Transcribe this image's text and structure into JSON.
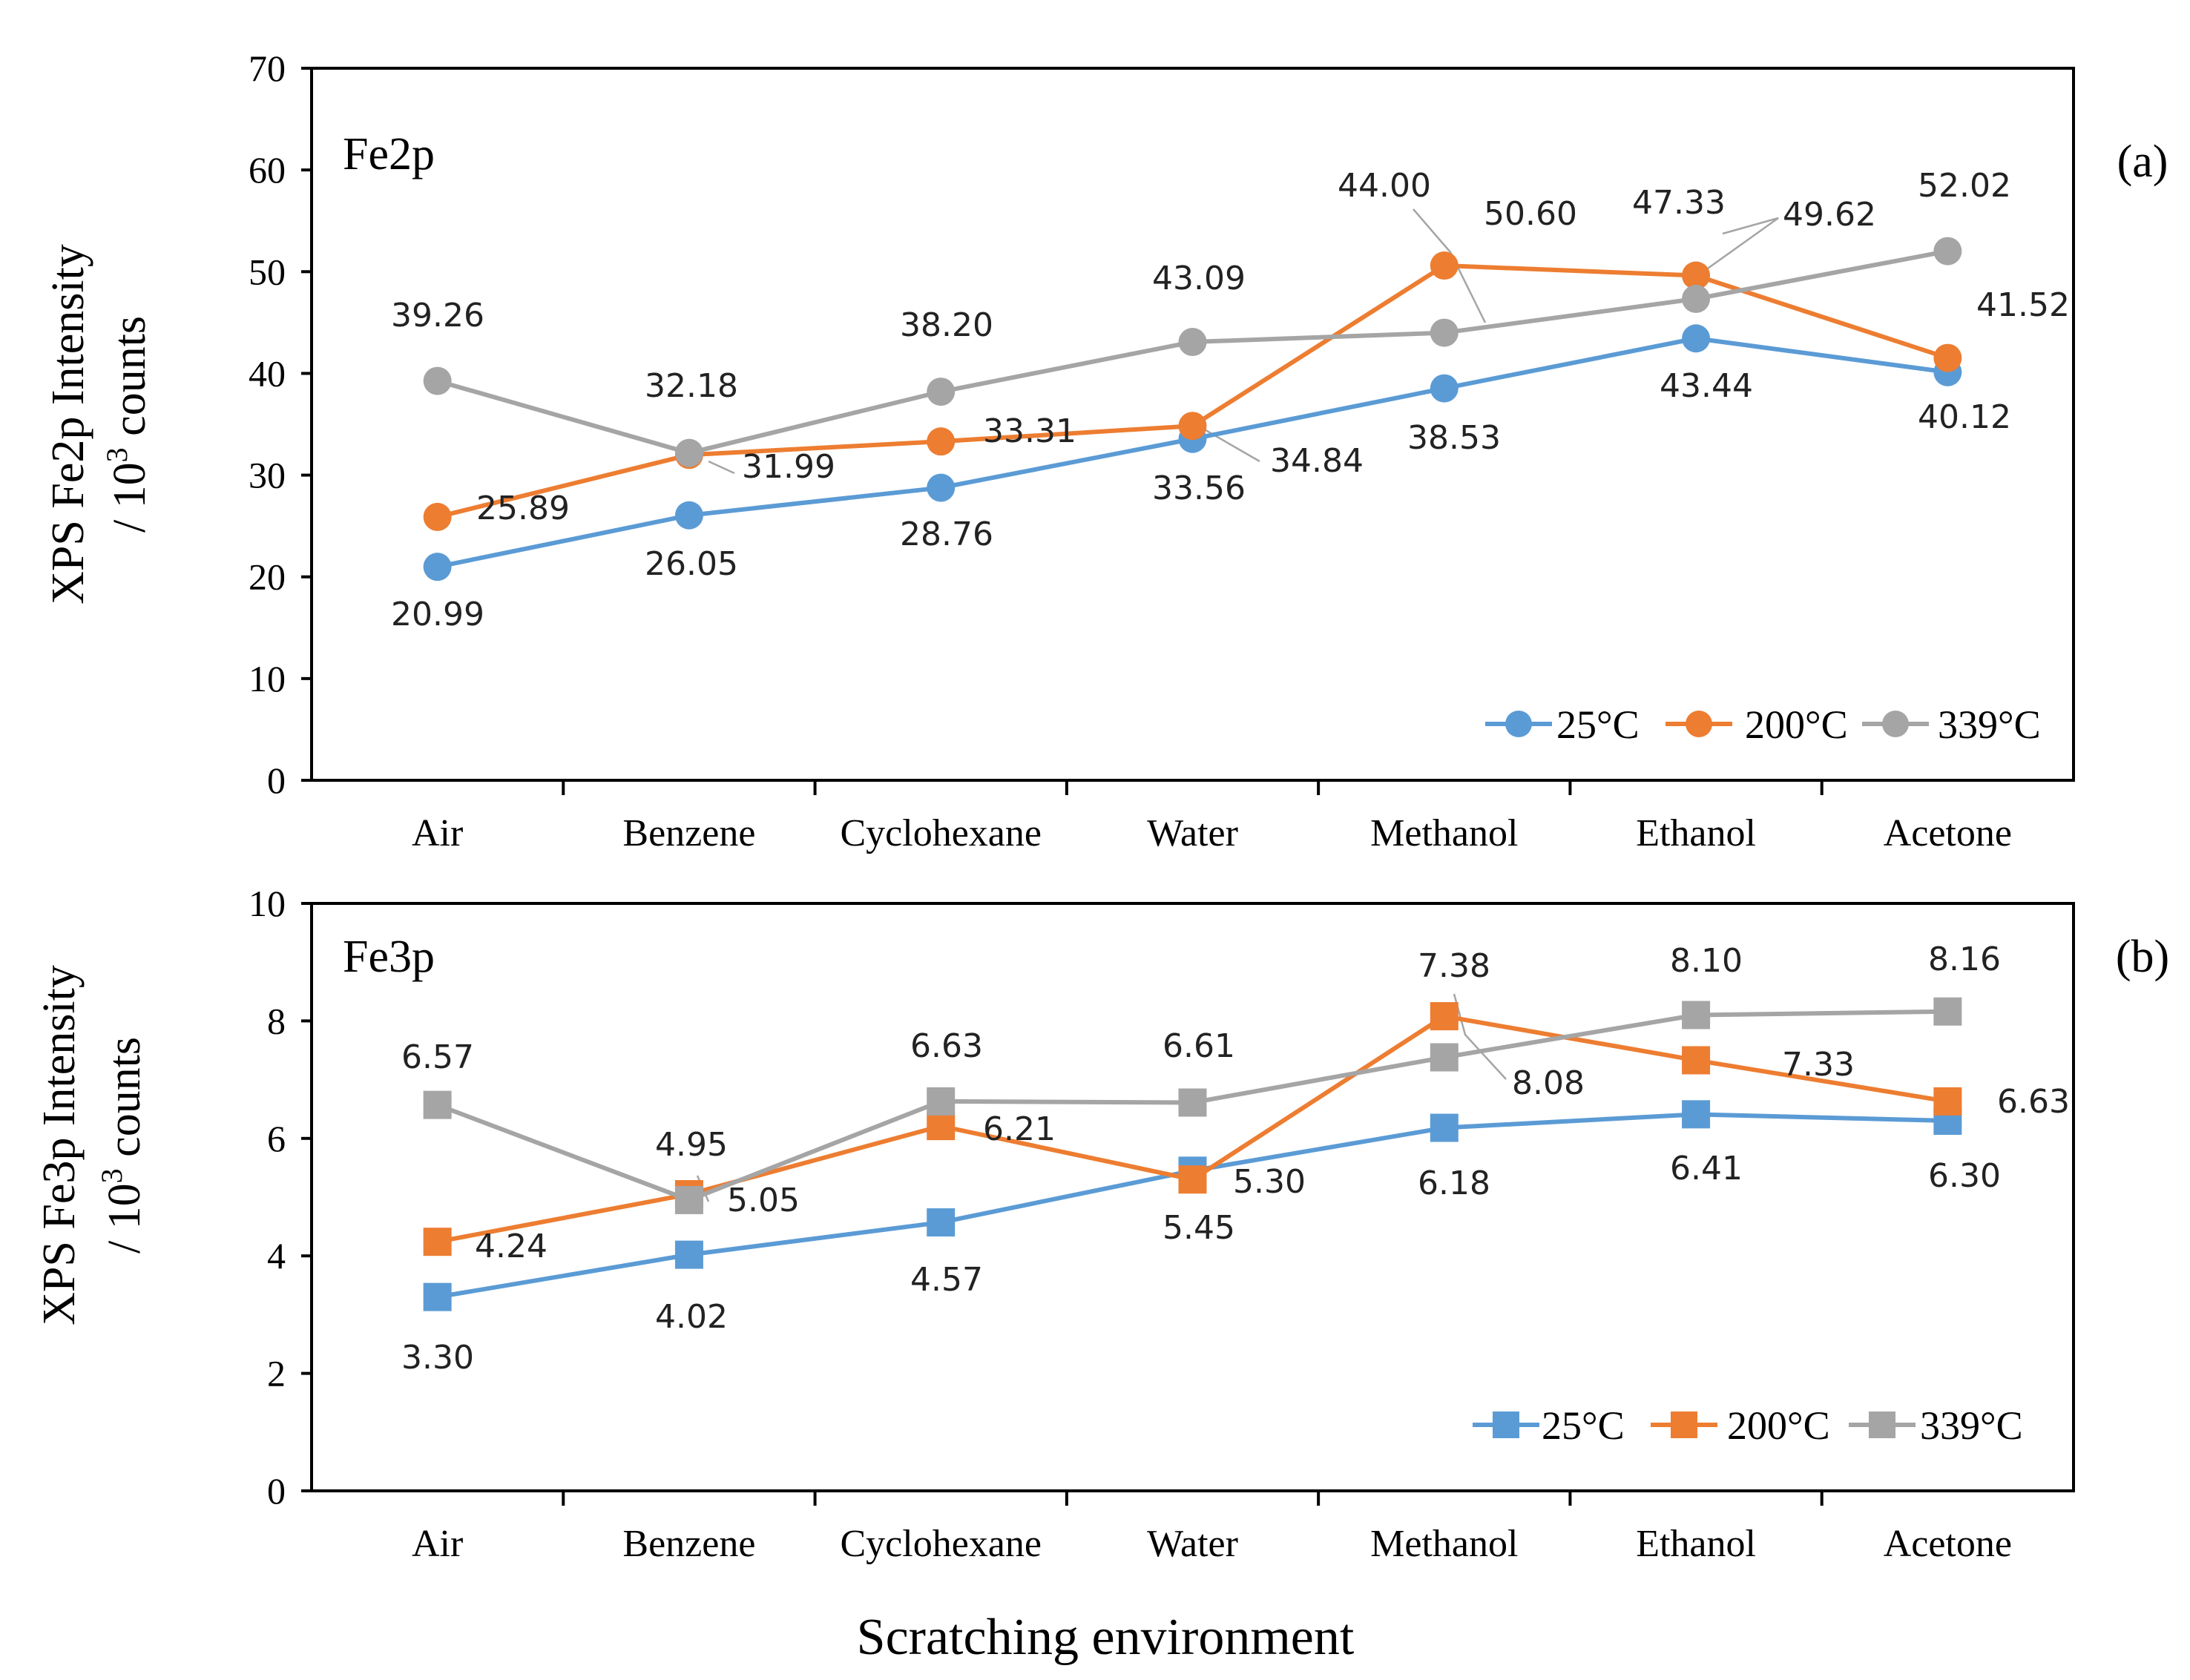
{
  "figure": {
    "xlabel": "Scratching environment"
  },
  "chart_data": [
    {
      "type": "line",
      "panel_label": "(a)",
      "tag": "Fe2p",
      "ylabel_line1": "XPS Fe2p Intensity",
      "ylabel_line2_prefix": "/ 10",
      "ylabel_line2_sup": "3",
      "ylabel_line2_suffix": " counts",
      "ylim": [
        0,
        70
      ],
      "yticks": [
        0,
        10,
        20,
        30,
        40,
        50,
        60,
        70
      ],
      "categories": [
        "Air",
        "Benzene",
        "Cyclohexane",
        "Water",
        "Methanol",
        "Ethanol",
        "Acetone"
      ],
      "marker": "circle",
      "legend_position": "bottom-right",
      "series": [
        {
          "name": "25°C",
          "color": "#5B9BD5",
          "values": [
            20.99,
            26.05,
            28.76,
            33.56,
            38.53,
            43.44,
            40.12
          ],
          "labels": [
            "20.99",
            "26.05",
            "28.76",
            "33.56",
            "38.53",
            "43.44",
            "40.12"
          ]
        },
        {
          "name": "200°C",
          "color": "#ED7D31",
          "values": [
            25.89,
            31.99,
            33.31,
            34.84,
            50.6,
            49.62,
            41.52
          ],
          "labels": [
            "25.89",
            "31.99",
            "33.31",
            "34.84",
            "50.60",
            "49.62",
            "41.52"
          ]
        },
        {
          "name": "339°C",
          "color": "#A5A5A5",
          "values": [
            39.26,
            32.18,
            38.2,
            43.09,
            44.0,
            47.33,
            52.02
          ],
          "labels": [
            "39.26",
            "32.18",
            "38.20",
            "43.09",
            "44.00",
            "47.33",
            "52.02"
          ]
        }
      ]
    },
    {
      "type": "line",
      "panel_label": "(b)",
      "tag": "Fe3p",
      "ylabel_line1": "XPS Fe3p Intensity",
      "ylabel_line2_prefix": "/ 10",
      "ylabel_line2_sup": "3",
      "ylabel_line2_suffix": " counts",
      "ylim": [
        0,
        10
      ],
      "yticks": [
        0,
        2,
        4,
        6,
        8,
        10
      ],
      "categories": [
        "Air",
        "Benzene",
        "Cyclohexane",
        "Water",
        "Methanol",
        "Ethanol",
        "Acetone"
      ],
      "marker": "square",
      "legend_position": "bottom-right",
      "series": [
        {
          "name": "25°C",
          "color": "#5B9BD5",
          "values": [
            3.3,
            4.02,
            4.57,
            5.45,
            6.18,
            6.41,
            6.3
          ],
          "labels": [
            "3.30",
            "4.02",
            "4.57",
            "5.45",
            "6.18",
            "6.41",
            "6.30"
          ]
        },
        {
          "name": "200°C",
          "color": "#ED7D31",
          "values": [
            4.24,
            5.05,
            6.21,
            5.3,
            8.08,
            7.33,
            6.63
          ],
          "labels": [
            "4.24",
            "5.05",
            "6.21",
            "5.30",
            "8.08",
            "7.33",
            "6.63"
          ]
        },
        {
          "name": "339°C",
          "color": "#A5A5A5",
          "values": [
            6.57,
            4.95,
            6.63,
            6.61,
            7.38,
            8.1,
            8.16
          ],
          "labels": [
            "6.57",
            "4.95",
            "6.63",
            "6.61",
            "7.38",
            "8.10",
            "8.16"
          ]
        }
      ]
    }
  ]
}
